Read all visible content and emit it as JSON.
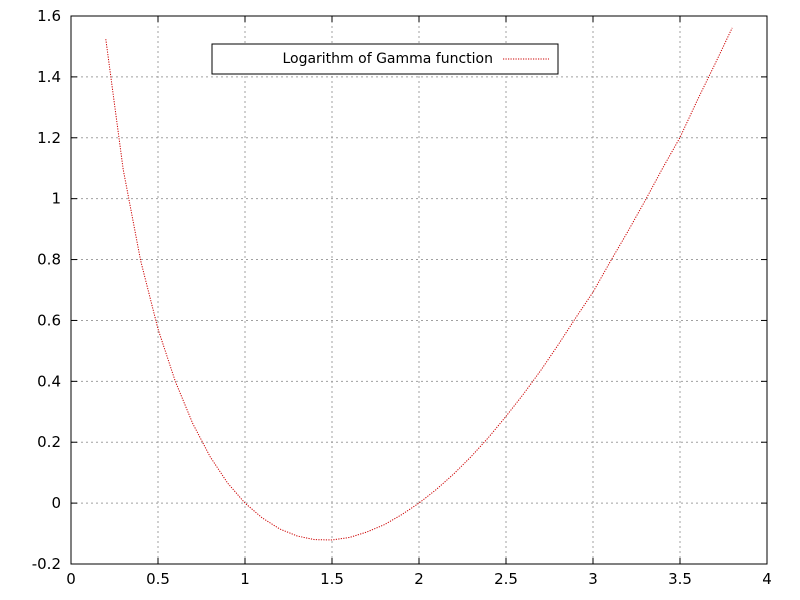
{
  "chart_data": {
    "type": "line",
    "title": "",
    "xlabel": "",
    "ylabel": "",
    "xlim": [
      0,
      4
    ],
    "ylim": [
      -0.2,
      1.6
    ],
    "x_ticks": [
      "0",
      "0.5",
      "1",
      "1.5",
      "2",
      "2.5",
      "3",
      "3.5",
      "4"
    ],
    "y_ticks": [
      "-0.2",
      "0",
      "0.2",
      "0.4",
      "0.6",
      "0.8",
      "1",
      "1.2",
      "1.4",
      "1.6"
    ],
    "grid": true,
    "legend_position": "top-center",
    "series": [
      {
        "name": "Logarithm of Gamma function",
        "color": "#cc0000",
        "style": "dotted",
        "x": [
          0.2,
          0.3,
          0.4,
          0.5,
          0.6,
          0.7,
          0.8,
          0.9,
          1.0,
          1.1,
          1.2,
          1.3,
          1.4,
          1.5,
          1.6,
          1.7,
          1.8,
          1.9,
          2.0,
          2.1,
          2.2,
          2.3,
          2.4,
          2.5,
          2.6,
          2.7,
          2.8,
          2.9,
          3.0,
          3.1,
          3.2,
          3.3,
          3.4,
          3.5,
          3.6,
          3.7,
          3.8
        ],
        "y": [
          1.524,
          1.096,
          0.797,
          0.572,
          0.399,
          0.261,
          0.152,
          0.066,
          0.0,
          -0.049,
          -0.085,
          -0.108,
          -0.12,
          -0.121,
          -0.113,
          -0.095,
          -0.071,
          -0.038,
          0.0,
          0.045,
          0.096,
          0.153,
          0.216,
          0.285,
          0.358,
          0.436,
          0.52,
          0.608,
          0.693,
          0.794,
          0.892,
          0.994,
          1.1,
          1.201,
          1.324,
          1.441,
          1.561
        ]
      }
    ]
  }
}
